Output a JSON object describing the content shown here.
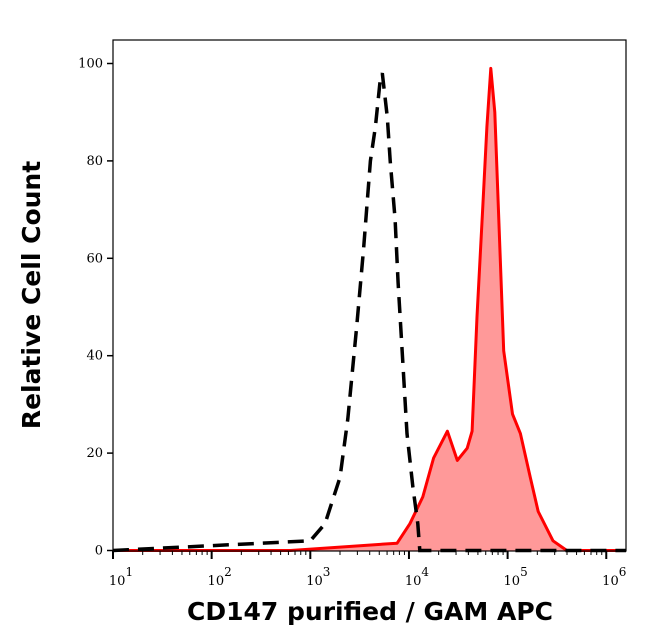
{
  "chart_data": {
    "type": "area",
    "title": "",
    "xlabel": "CD147 purified / GAM APC",
    "ylabel": "Relative Cell Count",
    "xscale": "log",
    "xlim": [
      10,
      1585000
    ],
    "ylim": [
      0,
      105
    ],
    "x_ticks": [
      {
        "base": "10",
        "exp": "1"
      },
      {
        "base": "10",
        "exp": "2"
      },
      {
        "base": "10",
        "exp": "3"
      },
      {
        "base": "10",
        "exp": "4"
      },
      {
        "base": "10",
        "exp": "5"
      },
      {
        "base": "10",
        "exp": "6"
      }
    ],
    "y_ticks": [
      "0",
      "20",
      "40",
      "60",
      "80",
      "100"
    ],
    "grid": false,
    "series": [
      {
        "style": "dashed-line",
        "color": "#000000",
        "x": [
          10,
          1000,
          1410,
          2000,
          2400,
          2950,
          3470,
          4070,
          4570,
          5130,
          5370,
          6030,
          6460,
          7240,
          7760,
          8710,
          9550,
          10960,
          12300,
          12880,
          1585000
        ],
        "y": [
          0,
          2,
          5.5,
          15,
          27,
          46,
          62,
          80,
          87,
          97,
          98,
          89,
          80,
          68,
          55,
          38,
          24,
          13,
          5.5,
          0,
          0
        ]
      },
      {
        "style": "filled-area",
        "color": "#ff0000",
        "fill": "#ff9999",
        "x": [
          10,
          631,
          7590,
          10230,
          13800,
          17780,
          24550,
          30900,
          38900,
          43650,
          48980,
          56230,
          61660,
          67610,
          74130,
          91200,
          112200,
          134900,
          169800,
          204200,
          288400,
          398100,
          1585000
        ],
        "y": [
          0,
          0,
          1.5,
          5.5,
          11,
          19,
          24.5,
          18.5,
          21,
          24.5,
          48,
          71,
          87,
          99,
          90,
          41,
          28,
          24,
          15,
          8,
          2,
          0,
          0
        ]
      }
    ]
  }
}
